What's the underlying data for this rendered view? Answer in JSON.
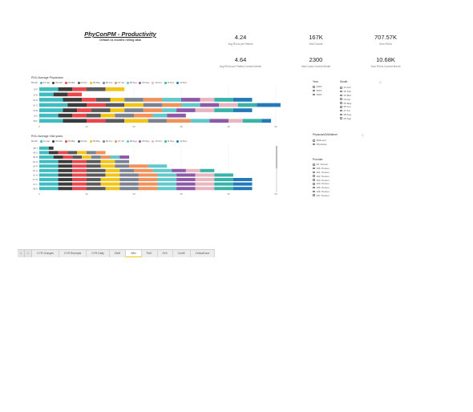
{
  "header": {
    "title": "PhyConPM - Productivity",
    "subtitle": "Default 24 months rolling data"
  },
  "kpis": [
    {
      "value": "4.24",
      "label": "Avg RVUs per Patient"
    },
    {
      "value": "167K",
      "label": "Visit Counts"
    },
    {
      "value": "707.57K",
      "label": "Sum RVUs"
    },
    {
      "value": "4.64",
      "label": "Avg RVUs per Patient Current Month"
    },
    {
      "value": "2300",
      "label": "Visit Count Current Month"
    },
    {
      "value": "10.68K",
      "label": "Sum RVUs Current Month"
    }
  ],
  "colors": [
    "#3ebcc0",
    "#3b3b3b",
    "#e8474b",
    "#5a5a5a",
    "#f2c416",
    "#7b8390",
    "#f0925c",
    "#62c8cc",
    "#8c5aa6",
    "#e8b6c0",
    "#37b3a8",
    "#2479b8"
  ],
  "chart_data": [
    {
      "type": "bar",
      "orientation": "horizontal",
      "stacked": true,
      "title": "RVU Average Physicians",
      "legend_title": "Month",
      "legend_position": "top-left",
      "categories": [
        "10 F",
        "10 E",
        "10 D",
        "10 C",
        "10 B",
        "10 A",
        "08 F"
      ],
      "series": [
        {
          "name": "01 Jan",
          "values": [
            4,
            3,
            5,
            6,
            5,
            4,
            5
          ]
        },
        {
          "name": "02 Feb",
          "values": [
            3,
            3,
            4,
            4,
            3,
            3,
            5
          ]
        },
        {
          "name": "03 Mar",
          "values": [
            3,
            3,
            3,
            4,
            3,
            3,
            4
          ]
        },
        {
          "name": "04 Apr",
          "values": [
            4,
            0,
            3,
            4,
            4,
            3,
            4
          ]
        },
        {
          "name": "05 May",
          "values": [
            4,
            0,
            3,
            4,
            3,
            3,
            5
          ]
        },
        {
          "name": "06 Jun",
          "values": [
            0,
            0,
            4,
            4,
            4,
            4,
            4
          ]
        },
        {
          "name": "07 Jul",
          "values": [
            0,
            0,
            4,
            4,
            4,
            4,
            5
          ]
        },
        {
          "name": "08 Aug",
          "values": [
            0,
            0,
            4,
            4,
            3,
            3,
            4
          ]
        },
        {
          "name": "09 Sep",
          "values": [
            0,
            0,
            4,
            4,
            4,
            4,
            4
          ]
        },
        {
          "name": "10 Oct",
          "values": [
            0,
            0,
            3,
            4,
            4,
            0,
            3
          ]
        },
        {
          "name": "11 Nov",
          "values": [
            0,
            0,
            4,
            4,
            4,
            0,
            4
          ]
        },
        {
          "name": "12 Dec",
          "values": [
            0,
            0,
            4,
            5,
            4,
            0,
            2
          ]
        }
      ],
      "xlim": [
        0,
        50
      ],
      "xticks": [
        "0",
        "10",
        "20",
        "30",
        "40",
        "50"
      ],
      "grid": true
    },
    {
      "type": "bar",
      "orientation": "horizontal",
      "stacked": true,
      "title": "RVU Average Visit years",
      "legend_title": "Month",
      "legend_position": "top-left",
      "categories": [
        "08 T",
        "08 S",
        "08 R",
        "04 Q",
        "04 P",
        "01 O",
        "01 N",
        "07 M",
        "07 L",
        "08 K"
      ],
      "series": [
        {
          "name": "01 Jan",
          "values": [
            2,
            2,
            3,
            4,
            4,
            4,
            4,
            4,
            4,
            4
          ]
        },
        {
          "name": "02 Feb",
          "values": [
            1,
            2,
            2,
            3,
            3,
            3,
            3,
            3,
            3,
            3
          ]
        },
        {
          "name": "03 Mar",
          "values": [
            0,
            2,
            2,
            3,
            3,
            3,
            3,
            3,
            3,
            3
          ]
        },
        {
          "name": "04 Apr",
          "values": [
            0,
            2,
            2,
            3,
            3,
            4,
            4,
            3,
            3,
            4
          ]
        },
        {
          "name": "05 May",
          "values": [
            0,
            2,
            2,
            3,
            3,
            3,
            3,
            4,
            4,
            3
          ]
        },
        {
          "name": "06 Jun",
          "values": [
            0,
            2,
            2,
            3,
            3,
            3,
            4,
            4,
            4,
            4
          ]
        },
        {
          "name": "07 Jul",
          "values": [
            0,
            2,
            2,
            0,
            4,
            4,
            4,
            4,
            4,
            4
          ]
        },
        {
          "name": "08 Aug",
          "values": [
            0,
            0,
            2,
            0,
            4,
            4,
            4,
            4,
            4,
            4
          ]
        },
        {
          "name": "09 Sep",
          "values": [
            0,
            0,
            2,
            0,
            0,
            3,
            4,
            4,
            4,
            4
          ]
        },
        {
          "name": "10 Oct",
          "values": [
            0,
            0,
            0,
            0,
            0,
            3,
            4,
            4,
            4,
            4
          ]
        },
        {
          "name": "11 Nov",
          "values": [
            0,
            0,
            0,
            0,
            0,
            3,
            4,
            4,
            4,
            4
          ]
        },
        {
          "name": "12 Dec",
          "values": [
            0,
            0,
            0,
            0,
            0,
            0,
            0,
            4,
            4,
            4
          ]
        }
      ],
      "xlim": [
        0,
        50
      ],
      "xticks": [
        "0",
        "10",
        "20",
        "30",
        "40",
        "50"
      ],
      "grid": true
    }
  ],
  "slicers": {
    "year": {
      "title": "Year",
      "items": [
        "2018",
        "2019",
        "2020"
      ]
    },
    "month": {
      "title": "Month",
      "items": [
        "01 Jan",
        "02 Feb",
        "03 Mar",
        "04 Apr",
        "05 May",
        "06 Jun",
        "07 Jul",
        "08 Aug",
        "09 Sep"
      ]
    },
    "physician": {
      "title": "PhysicianOrMidlevel",
      "items": [
        "MidLevel",
        "Physician"
      ]
    },
    "provider": {
      "title": "Provider",
      "items": [
        "06. Person",
        "105. Person",
        "101. Person",
        "102. Person",
        "103. Person",
        "104. Person",
        "105. Person",
        "106. Person",
        "107. Person"
      ]
    }
  },
  "tabs": {
    "prev": "<",
    "next": ">",
    "items": [
      "CYR Charges",
      "CYR Receipts",
      "CYR Daily",
      "E&M",
      "Wiki",
      "PAG",
      "GHI",
      "ConM",
      "CriticalCare"
    ],
    "active_index": 4
  }
}
